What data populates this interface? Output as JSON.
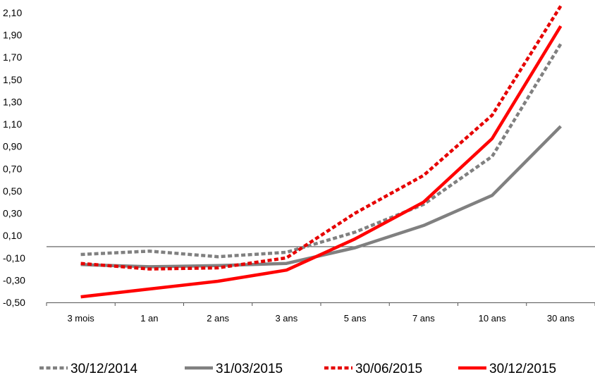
{
  "chart_data": {
    "type": "line",
    "categories": [
      "3 mois",
      "1 an",
      "2 ans",
      "3 ans",
      "5 ans",
      "7 ans",
      "10 ans",
      "30 ans"
    ],
    "y_ticks": [
      "2,10",
      "1,90",
      "1,70",
      "1,50",
      "1,30",
      "1,10",
      "0,90",
      "0,70",
      "0,50",
      "0,30",
      "0,10",
      "-0,10",
      "-0,30",
      "-0,50"
    ],
    "ylim": [
      -0.5,
      2.1
    ],
    "y_tick_step": 0.2,
    "zero_line": 0,
    "grid": false,
    "legend_position": "bottom",
    "series": [
      {
        "name": "30/12/2014",
        "color": "#808080",
        "style": "dotted",
        "values": [
          -0.07,
          -0.04,
          -0.09,
          -0.05,
          0.13,
          0.38,
          0.81,
          1.82
        ]
      },
      {
        "name": "31/03/2015",
        "color": "#808080",
        "style": "solid",
        "values": [
          -0.16,
          -0.18,
          -0.17,
          -0.15,
          -0.01,
          0.19,
          0.46,
          1.08
        ]
      },
      {
        "name": "30/06/2015",
        "color": "#e60000",
        "style": "dotted",
        "values": [
          -0.15,
          -0.2,
          -0.19,
          -0.1,
          0.3,
          0.64,
          1.18,
          2.16
        ]
      },
      {
        "name": "30/12/2015",
        "color": "#ff0000",
        "style": "solid",
        "values": [
          -0.45,
          -0.38,
          -0.31,
          -0.21,
          0.07,
          0.4,
          0.97,
          1.98
        ]
      }
    ]
  }
}
